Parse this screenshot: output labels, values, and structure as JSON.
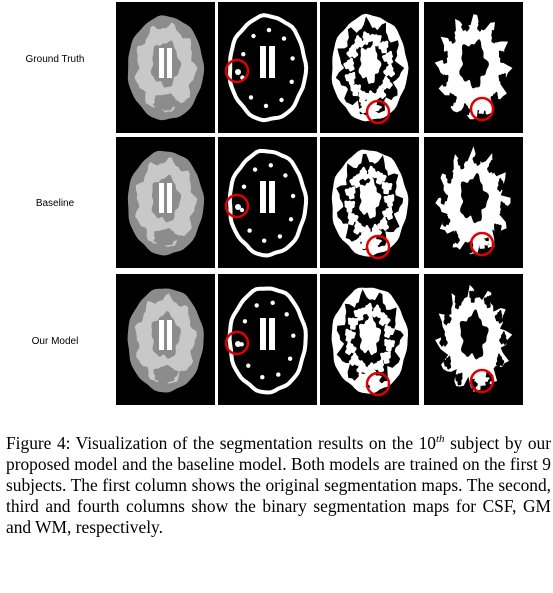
{
  "figure": {
    "rows": [
      {
        "label": "Ground Truth"
      },
      {
        "label": "Baseline"
      },
      {
        "label": "Our Model"
      }
    ],
    "columns": [
      "segmentation-map",
      "csf-binary",
      "gm-binary",
      "wm-binary"
    ],
    "colors": {
      "background": "#000000",
      "csf": "#ffffff",
      "gm": "#8c8c8c",
      "wm": "#c8c8c8",
      "highlight": "#e00000"
    }
  },
  "caption": {
    "lead": "Figure 4: Visualization of the segmentation results on the ",
    "base": "10",
    "sup": "th",
    "rest": " subject by our proposed model and the baseline model. Both models are trained on the first 9 subjects. The first column shows the original segmentation maps. The second, third and fourth columns show the binary segmentation maps for CSF, GM and WM, respectively."
  }
}
